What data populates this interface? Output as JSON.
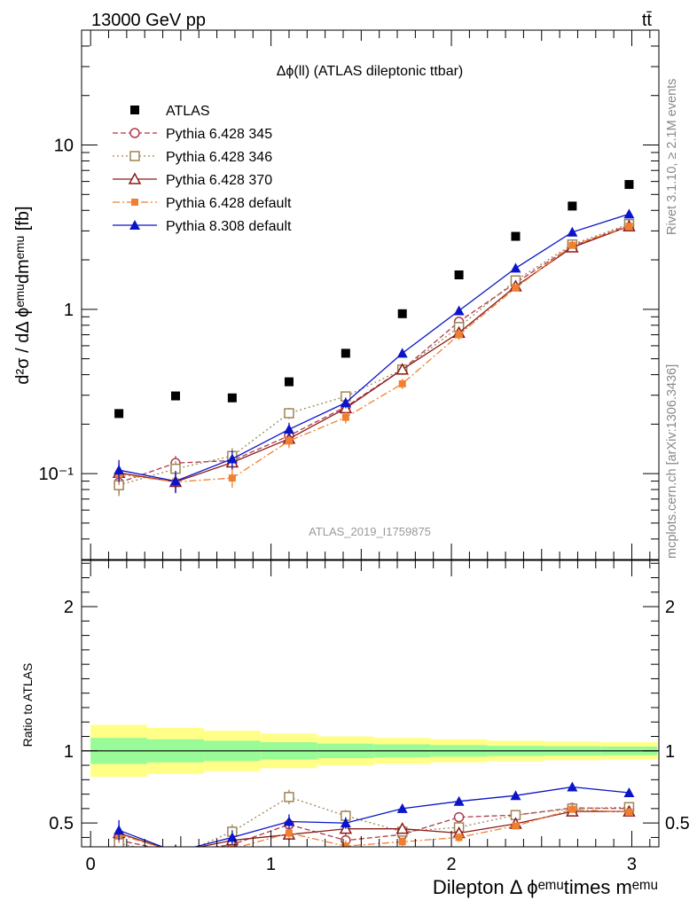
{
  "header": {
    "left": "13000 GeV pp",
    "right": "tt̄"
  },
  "side_labels": {
    "rivet": "Rivet 3.1.10, ≥ 2.1M events",
    "mcplots": "mcplots.cern.ch [arXiv:1306.3436]"
  },
  "chart_data": [
    {
      "type": "line",
      "title": "Δϕ(ll) (ATLAS dileptonic ttbar)",
      "ylabel": "d²σ / dΔ ϕᵉᵐᵘdmᵉᵐᵘ [fb]",
      "yscale": "log",
      "xlim": [
        -0.05,
        3.15
      ],
      "ylim": [
        0.03,
        50
      ],
      "yticks": [
        {
          "value": 0.1,
          "label": "10⁻¹"
        },
        {
          "value": 1,
          "label": "1"
        },
        {
          "value": 10,
          "label": "10"
        }
      ],
      "watermark": "ATLAS_2019_I1759875",
      "legend_position": "top-left",
      "x": [
        0.157,
        0.471,
        0.785,
        1.1,
        1.414,
        1.728,
        2.042,
        2.356,
        2.67,
        2.985
      ],
      "series": [
        {
          "name": "ATLAS",
          "color": "#000000",
          "marker": "square-filled",
          "line": "none",
          "values": [
            0.232,
            0.297,
            0.289,
            0.362,
            0.54,
            0.94,
            1.62,
            2.78,
            4.25,
            5.75
          ]
        },
        {
          "name": "Pythia 6.428 345",
          "color": "#b03a48",
          "marker": "circle-open",
          "line": "dashed",
          "values": [
            0.088,
            0.116,
            0.12,
            0.17,
            0.255,
            0.43,
            0.84,
            1.45,
            2.42,
            3.25
          ],
          "err": [
            0.012,
            0.012,
            0.012,
            0.015,
            0.018,
            0.03,
            0.05,
            0.07,
            0.1,
            0.12
          ]
        },
        {
          "name": "Pythia 6.428 346",
          "color": "#a08454",
          "marker": "square-open",
          "line": "dotted",
          "values": [
            0.085,
            0.107,
            0.128,
            0.233,
            0.295,
            0.43,
            0.78,
            1.5,
            2.48,
            3.3
          ],
          "err": [
            0.012,
            0.012,
            0.015,
            0.018,
            0.018,
            0.03,
            0.05,
            0.07,
            0.1,
            0.12
          ]
        },
        {
          "name": "Pythia 6.428 370",
          "color": "#8b1a1a",
          "marker": "triangle-open",
          "line": "solid",
          "values": [
            0.101,
            0.089,
            0.117,
            0.163,
            0.25,
            0.43,
            0.72,
            1.38,
            2.38,
            3.2
          ],
          "err": [
            0.014,
            0.012,
            0.012,
            0.015,
            0.018,
            0.03,
            0.05,
            0.07,
            0.1,
            0.12
          ]
        },
        {
          "name": "Pythia 6.428 default",
          "color": "#f08030",
          "marker": "square-filled-small",
          "line": "dashdot",
          "values": [
            0.099,
            0.089,
            0.094,
            0.158,
            0.22,
            0.352,
            0.7,
            1.35,
            2.45,
            3.2
          ],
          "err": [
            0.014,
            0.012,
            0.012,
            0.015,
            0.018,
            0.025,
            0.05,
            0.07,
            0.1,
            0.12
          ]
        },
        {
          "name": "Pythia 8.308 default",
          "color": "#0a14c8",
          "marker": "triangle-filled",
          "line": "solid",
          "values": [
            0.105,
            0.09,
            0.123,
            0.186,
            0.27,
            0.54,
            0.98,
            1.78,
            2.95,
            3.8
          ],
          "err": [
            0.016,
            0.014,
            0.015,
            0.018,
            0.02,
            0.03,
            0.05,
            0.07,
            0.1,
            0.12
          ]
        }
      ]
    },
    {
      "type": "line",
      "xlabel": "Dilepton Δ ϕᵉᵐᵘtimes mᵉᵐᵘ",
      "ylabel": "Ratio to ATLAS",
      "xlim": [
        -0.05,
        3.15
      ],
      "ylim": [
        0.335,
        2.32
      ],
      "yticks": [
        {
          "value": 0.5,
          "label": "0.5"
        },
        {
          "value": 1,
          "label": "1"
        },
        {
          "value": 2,
          "label": "2"
        }
      ],
      "xticks": [
        {
          "value": 0,
          "label": "0"
        },
        {
          "value": 1,
          "label": "1"
        },
        {
          "value": 2,
          "label": "2"
        },
        {
          "value": 3,
          "label": "3"
        }
      ],
      "reference_line": 1,
      "bin_edges": [
        0.0,
        0.314,
        0.628,
        0.942,
        1.257,
        1.571,
        1.885,
        2.199,
        2.513,
        2.827,
        3.142
      ],
      "band_outer": [
        0.18,
        0.16,
        0.14,
        0.12,
        0.1,
        0.09,
        0.08,
        0.07,
        0.065,
        0.06
      ],
      "band_inner": [
        0.09,
        0.08,
        0.07,
        0.06,
        0.05,
        0.045,
        0.04,
        0.035,
        0.032,
        0.03
      ],
      "band_colors": {
        "outer": "#ffff88",
        "inner": "#98fb98"
      },
      "x": [
        0.157,
        0.471,
        0.785,
        1.1,
        1.414,
        1.728,
        2.042,
        2.356,
        2.67,
        2.985
      ],
      "series": [
        {
          "name": "Pythia 6.428 345",
          "values": [
            0.38,
            0.3,
            0.35,
            0.49,
            0.38,
            0.42,
            0.54,
            0.555,
            0.605,
            0.6
          ],
          "err": [
            0.05,
            0.05,
            0.05,
            0.04,
            0.04,
            0.03,
            0.02,
            0.015,
            0.015,
            0.015
          ]
        },
        {
          "name": "Pythia 6.428 346",
          "values": [
            0.36,
            0.27,
            0.44,
            0.68,
            0.55,
            0.44,
            0.47,
            0.555,
            0.6,
            0.61
          ],
          "err": [
            0.05,
            0.05,
            0.05,
            0.05,
            0.04,
            0.03,
            0.02,
            0.015,
            0.015,
            0.015
          ]
        },
        {
          "name": "Pythia 6.428 370",
          "values": [
            0.43,
            0.3,
            0.38,
            0.42,
            0.46,
            0.46,
            0.43,
            0.495,
            0.58,
            0.58
          ],
          "err": [
            0.06,
            0.05,
            0.05,
            0.04,
            0.04,
            0.03,
            0.02,
            0.015,
            0.015,
            0.015
          ]
        },
        {
          "name": "Pythia 6.428 default",
          "values": [
            0.42,
            0.3,
            0.32,
            0.43,
            0.34,
            0.37,
            0.4,
            0.48,
            0.595,
            0.575
          ],
          "err": [
            0.06,
            0.05,
            0.05,
            0.04,
            0.04,
            0.03,
            0.03,
            0.015,
            0.015,
            0.015
          ]
        },
        {
          "name": "Pythia 8.308 default",
          "values": [
            0.45,
            0.3,
            0.4,
            0.51,
            0.5,
            0.6,
            0.65,
            0.69,
            0.75,
            0.71
          ],
          "err": [
            0.07,
            0.05,
            0.05,
            0.05,
            0.04,
            0.03,
            0.03,
            0.02,
            0.015,
            0.015
          ]
        }
      ]
    }
  ]
}
